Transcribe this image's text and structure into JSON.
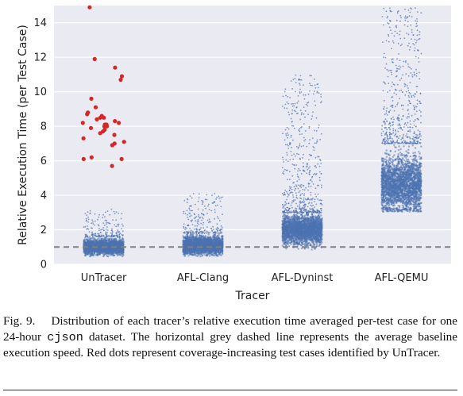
{
  "chart_data": {
    "type": "scatter",
    "subtype": "strip-jitter",
    "title": "",
    "xlabel": "Tracer",
    "ylabel": "Relative Execution Time (per Test Case)",
    "categories": [
      "UnTracer",
      "AFL-Clang",
      "AFL-Dyninst",
      "AFL-QEMU"
    ],
    "ylim": [
      0,
      15
    ],
    "yticks": [
      0,
      2,
      4,
      6,
      8,
      10,
      12,
      14
    ],
    "grid": true,
    "background": "#eaeaf2",
    "baseline": {
      "value": 1.0,
      "style": "dashed",
      "color": "#808080"
    },
    "colors": {
      "series": "#4c72b0",
      "highlight": "#d62728"
    },
    "series": [
      {
        "category": "UnTracer",
        "median": 1.0,
        "dense_range": [
          0.6,
          1.6
        ],
        "sparse_max": 3.2
      },
      {
        "category": "AFL-Clang",
        "median": 1.1,
        "dense_range": [
          0.6,
          1.8
        ],
        "sparse_max": 4.1
      },
      {
        "category": "AFL-Dyninst",
        "median": 2.0,
        "dense_range": [
          1.0,
          3.0
        ],
        "sparse_max": 11.0
      },
      {
        "category": "AFL-QEMU",
        "median": 4.6,
        "dense_range": [
          3.2,
          7.0
        ],
        "sparse_max": 14.9
      }
    ],
    "highlight_points": {
      "category": "UnTracer",
      "values": [
        14.9,
        11.9,
        11.4,
        10.9,
        10.7,
        9.6,
        9.1,
        8.8,
        8.7,
        8.6,
        8.5,
        8.5,
        8.4,
        8.3,
        8.2,
        8.2,
        8.1,
        8.1,
        8.0,
        8.0,
        7.9,
        7.8,
        7.7,
        7.6,
        7.5,
        7.3,
        7.1,
        7.0,
        6.9,
        6.2,
        6.1,
        6.1,
        5.7
      ]
    }
  },
  "caption": {
    "label": "Fig. 9.",
    "text_before": "Distribution of each tracer’s relative execution time averaged per-test case for one 24-hour",
    "code": "cjson",
    "text_after": "dataset. The horizontal grey dashed line represents the average baseline execution speed. Red dots represent coverage-increasing test cases identified by UnTracer."
  }
}
